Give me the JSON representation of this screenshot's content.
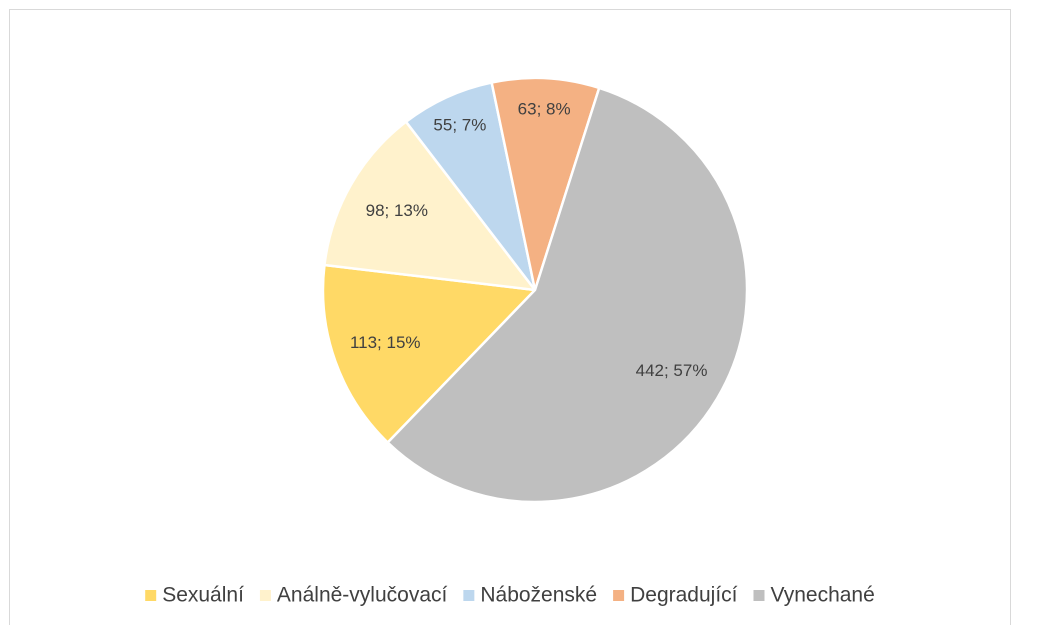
{
  "chart_data": {
    "type": "pie",
    "categories": [
      "Sexuální",
      "Análně-vylučovací",
      "Náboženské",
      "Degradující",
      "Vynechané"
    ],
    "values": [
      113,
      98,
      55,
      63,
      442
    ],
    "value_labels": [
      "113; 15%",
      "98; 13%",
      "55; 7%",
      "63; 8%",
      "442; 57%"
    ],
    "colors": [
      "#FFD966",
      "#FFF2CC",
      "#BDD7EE",
      "#F4B183",
      "#BFBFBF"
    ],
    "legend": "bottom"
  }
}
